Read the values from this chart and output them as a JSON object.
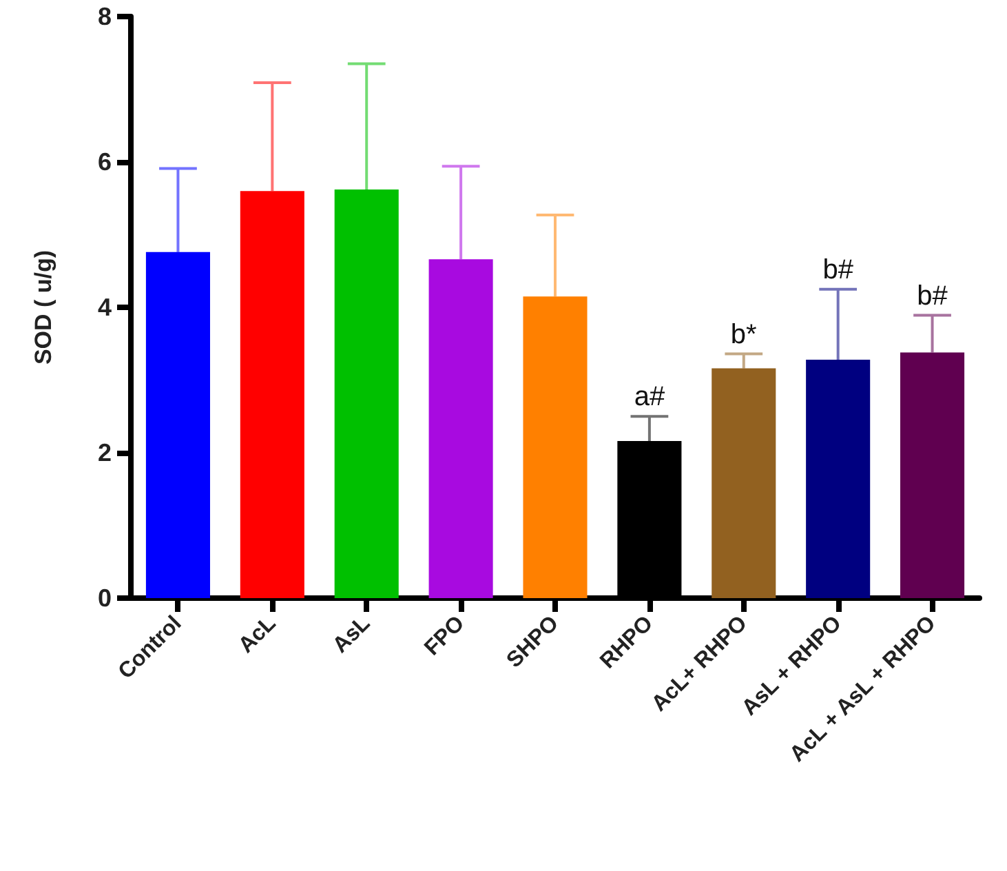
{
  "chart_data": {
    "type": "bar",
    "ylabel": "SOD ( u/g)",
    "categories": [
      "Control",
      "AcL",
      "AsL",
      "FPO",
      "SHPO",
      "RHPO",
      "AcL+ RHPO",
      "AsL + RHPO",
      "AcL + AsL + RHPO"
    ],
    "values": [
      4.76,
      5.6,
      5.62,
      4.66,
      4.15,
      2.16,
      3.16,
      3.28,
      3.38
    ],
    "colors": [
      "#0000ff",
      "#ff0000",
      "#00c000",
      "#a80ae0",
      "#ff8000",
      "#000000",
      "#926120",
      "#000080",
      "#600050"
    ],
    "errors": [
      [
        4.76,
        5.91
      ],
      [
        5.6,
        7.09
      ],
      [
        5.62,
        7.35
      ],
      [
        4.66,
        5.94
      ],
      [
        4.15,
        5.27
      ],
      [
        2.16,
        2.5
      ],
      [
        3.16,
        3.36
      ],
      [
        3.28,
        4.25
      ],
      [
        3.38,
        3.89
      ]
    ],
    "ylim": [
      0,
      8
    ],
    "yticks": [
      0,
      2,
      4,
      6,
      8
    ],
    "grid": false,
    "annotations": [
      {
        "text": "a#",
        "x": "RHPO",
        "y": 2.5
      },
      {
        "text": "b*",
        "x": "AcL+ RHPO",
        "y": 3.36
      },
      {
        "text": "b#",
        "x": "AsL + RHPO",
        "y": 4.25
      },
      {
        "text": "b#",
        "x": "AcL + AsL + RHPO",
        "y": 3.89
      }
    ]
  }
}
